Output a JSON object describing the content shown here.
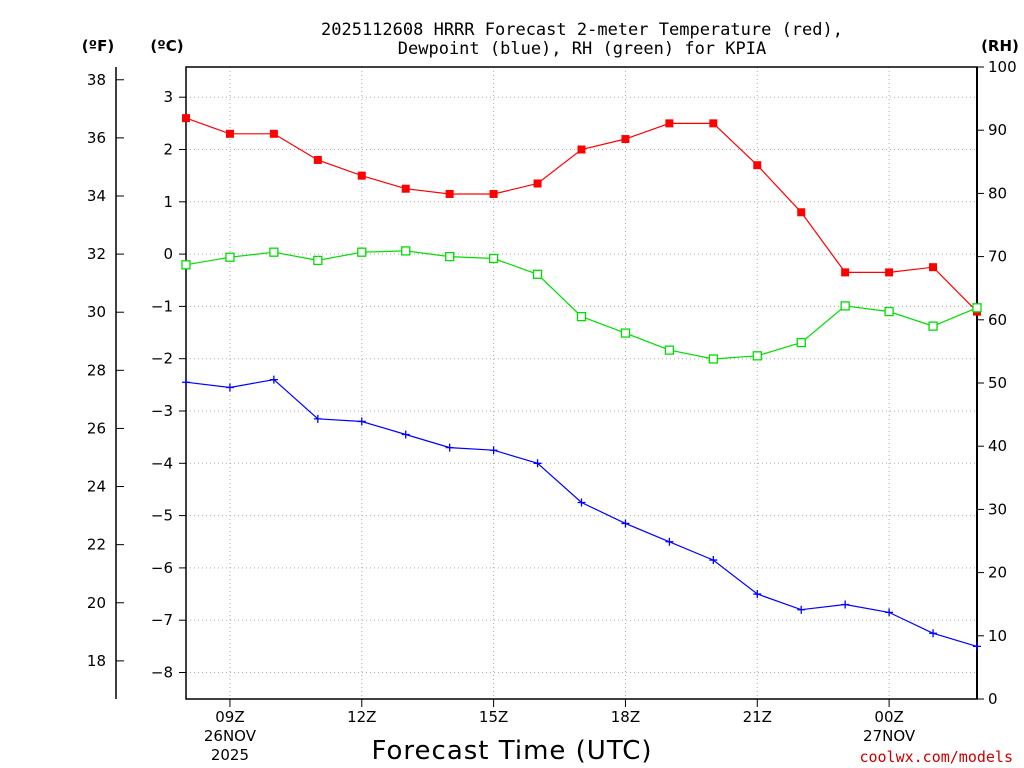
{
  "chart_data": {
    "type": "line",
    "title_lines": [
      "2025112608 HRRR Forecast 2-meter Temperature (red),",
      "Dewpoint (blue), RH (green) for KPIA"
    ],
    "xlabel": "Forecast Time (UTC)",
    "credit": "coolwx.com/models",
    "units": {
      "fahrenheit": "(ºF)",
      "celsius": "(ºC)",
      "rh": "(RH)"
    },
    "x_hours": [
      8,
      9,
      10,
      11,
      12,
      13,
      14,
      15,
      16,
      17,
      18,
      19,
      20,
      21,
      22,
      23,
      24,
      25,
      26
    ],
    "x_range": [
      8,
      26
    ],
    "x_ticks": [
      {
        "hour": 9,
        "label": "09Z",
        "date_line1": "26NOV",
        "date_line2": "2025"
      },
      {
        "hour": 12,
        "label": "12Z",
        "date_line1": "",
        "date_line2": ""
      },
      {
        "hour": 15,
        "label": "15Z",
        "date_line1": "",
        "date_line2": ""
      },
      {
        "hour": 18,
        "label": "18Z",
        "date_line1": "",
        "date_line2": ""
      },
      {
        "hour": 21,
        "label": "21Z",
        "date_line1": "",
        "date_line2": ""
      },
      {
        "hour": 24,
        "label": "00Z",
        "date_line1": "27NOV",
        "date_line2": ""
      }
    ],
    "y_celsius": {
      "range": [
        -8.5,
        3.6
      ],
      "ticks": [
        3,
        2,
        1,
        0,
        -1,
        -2,
        -3,
        -4,
        -5,
        -6,
        -7,
        -8
      ]
    },
    "y_fahrenheit": {
      "ticks": [
        38,
        36,
        34,
        32,
        30,
        28,
        26,
        24,
        22,
        20,
        18
      ]
    },
    "y_rh": {
      "range": [
        0,
        100
      ],
      "ticks": [
        100,
        90,
        80,
        70,
        60,
        50,
        40,
        30,
        20,
        10,
        0
      ]
    },
    "series": [
      {
        "name": "Temperature",
        "axis": "celsius",
        "color": "#ff0000",
        "marker": "filled-square",
        "values": [
          2.6,
          2.3,
          2.3,
          1.8,
          1.5,
          1.25,
          1.15,
          1.15,
          1.35,
          2.0,
          2.2,
          2.5,
          2.5,
          1.7,
          0.8,
          -0.35,
          -0.35,
          -0.25,
          -1.1
        ]
      },
      {
        "name": "Dewpoint",
        "axis": "celsius",
        "color": "#0000ff",
        "marker": "plus",
        "values": [
          -2.45,
          -2.55,
          -2.4,
          -3.15,
          -3.2,
          -3.45,
          -3.7,
          -3.75,
          -4.0,
          -4.75,
          -5.15,
          -5.5,
          -5.85,
          -6.5,
          -6.8,
          -6.7,
          -6.85,
          -7.25,
          -7.5
        ]
      },
      {
        "name": "RH",
        "axis": "rh",
        "color": "#00dd00",
        "marker": "open-square",
        "values": [
          68.7,
          69.9,
          70.7,
          69.4,
          70.7,
          70.9,
          70.0,
          69.7,
          67.2,
          60.5,
          57.9,
          55.2,
          53.8,
          54.3,
          56.4,
          62.2,
          61.3,
          59.0,
          61.9
        ]
      }
    ]
  }
}
